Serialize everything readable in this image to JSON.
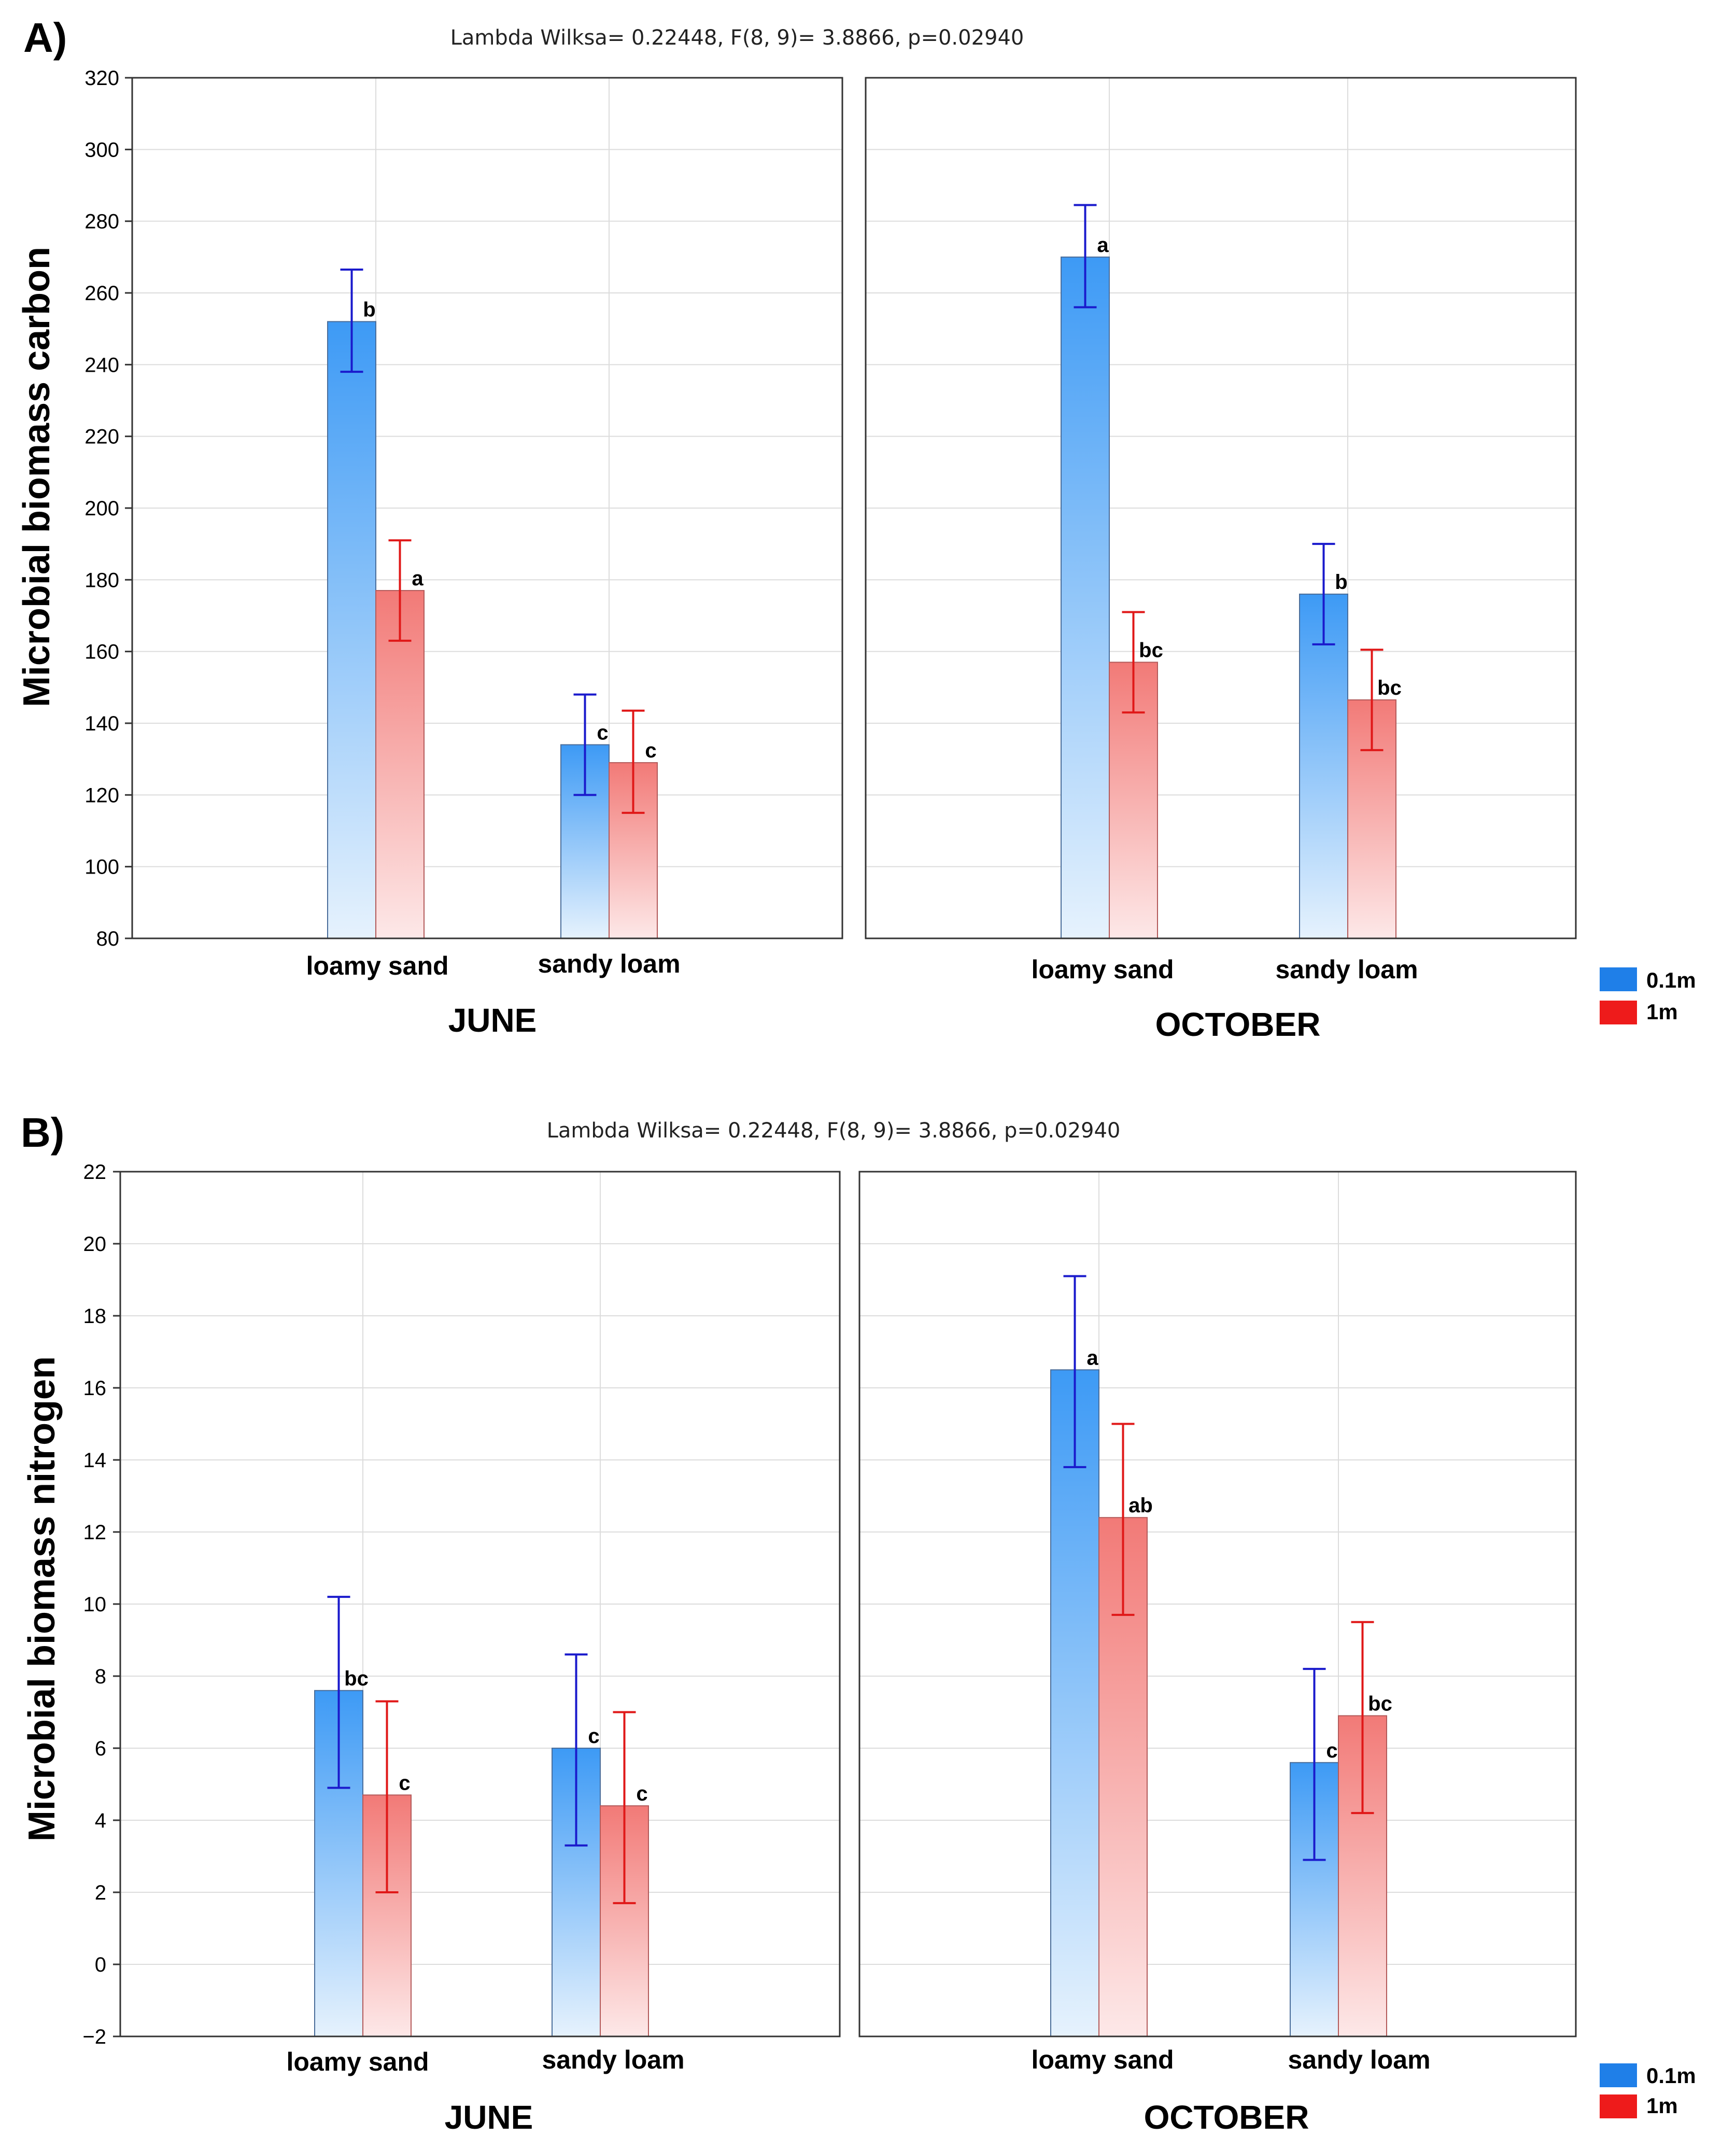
{
  "chart_data": [
    {
      "id": "A",
      "type": "bar",
      "panel_label": "A)",
      "title": "Lambda Wilksa= 0.22448, F(8, 9)= 3.8866, p=0.02940",
      "ylabel": "Microbial biomass carbon",
      "ylim": [
        80,
        320
      ],
      "yticks": [
        "80",
        "100",
        "120",
        "140",
        "160",
        "180",
        "200",
        "220",
        "240",
        "260",
        "280",
        "300",
        "320"
      ],
      "ytick_values": [
        80,
        100,
        120,
        140,
        160,
        180,
        200,
        220,
        240,
        260,
        280,
        300,
        320
      ],
      "categories": [
        "loamy sand",
        "sandy loam"
      ],
      "facets": [
        {
          "label": "JUNE",
          "series": [
            {
              "name": "0.1m",
              "values": [
                252,
                134
              ],
              "err_low": [
                238,
                120
              ],
              "err_high": [
                266.5,
                148
              ],
              "sig": [
                "b",
                "c"
              ]
            },
            {
              "name": "1m",
              "values": [
                177,
                129
              ],
              "err_low": [
                163,
                115
              ],
              "err_high": [
                191,
                143.5
              ],
              "sig": [
                "a",
                "c"
              ]
            }
          ]
        },
        {
          "label": "OCTOBER",
          "series": [
            {
              "name": "0.1m",
              "values": [
                270,
                176
              ],
              "err_low": [
                256,
                162
              ],
              "err_high": [
                284.5,
                190
              ],
              "sig": [
                "a",
                "b"
              ]
            },
            {
              "name": "1m",
              "values": [
                157,
                146.5
              ],
              "err_low": [
                143,
                132.5
              ],
              "err_high": [
                171,
                160.5
              ],
              "sig": [
                "bc",
                "bc"
              ]
            }
          ]
        }
      ],
      "legend": [
        {
          "label": "0.1m",
          "color": "#1f7fe8"
        },
        {
          "label": "1m",
          "color": "#ee1b1b"
        }
      ]
    },
    {
      "id": "B",
      "type": "bar",
      "panel_label": "B)",
      "title": "Lambda Wilksa= 0.22448, F(8, 9)= 3.8866, p=0.02940",
      "ylabel": "Microbial biomass nitrogen",
      "ylim": [
        -2,
        22
      ],
      "yticks": [
        "−2",
        "0",
        "2",
        "4",
        "6",
        "8",
        "10",
        "12",
        "14",
        "16",
        "18",
        "20",
        "22"
      ],
      "ytick_values": [
        -2,
        0,
        2,
        4,
        6,
        8,
        10,
        12,
        14,
        16,
        18,
        20,
        22
      ],
      "categories": [
        "loamy sand",
        "sandy loam"
      ],
      "facets": [
        {
          "label": "JUNE",
          "series": [
            {
              "name": "0.1m",
              "values": [
                7.6,
                6.0
              ],
              "err_low": [
                4.9,
                3.3
              ],
              "err_high": [
                10.2,
                8.6
              ],
              "sig": [
                "bc",
                "c"
              ]
            },
            {
              "name": "1m",
              "values": [
                4.7,
                4.4
              ],
              "err_low": [
                2.0,
                1.7
              ],
              "err_high": [
                7.3,
                7.0
              ],
              "sig": [
                "c",
                "c"
              ]
            }
          ]
        },
        {
          "label": "OCTOBER",
          "series": [
            {
              "name": "0.1m",
              "values": [
                16.5,
                5.6
              ],
              "err_low": [
                13.8,
                2.9
              ],
              "err_high": [
                19.1,
                8.2
              ],
              "sig": [
                "a",
                "c"
              ]
            },
            {
              "name": "1m",
              "values": [
                12.4,
                6.9
              ],
              "err_low": [
                9.7,
                4.2
              ],
              "err_high": [
                15.0,
                9.5
              ],
              "sig": [
                "ab",
                "bc"
              ]
            }
          ]
        }
      ],
      "legend": [
        {
          "label": "0.1m",
          "color": "#1f7fe8"
        },
        {
          "label": "1m",
          "color": "#ee1b1b"
        }
      ]
    }
  ],
  "colors": {
    "blue_top": "#3d9af5",
    "blue_bottom": "#e6f2fd",
    "red_top": "#f2807d",
    "red_bottom": "#fde6e6",
    "blue_error": "#1a1acc",
    "red_error": "#e01818",
    "grid": "#dcdcdc",
    "frame": "#333333"
  }
}
